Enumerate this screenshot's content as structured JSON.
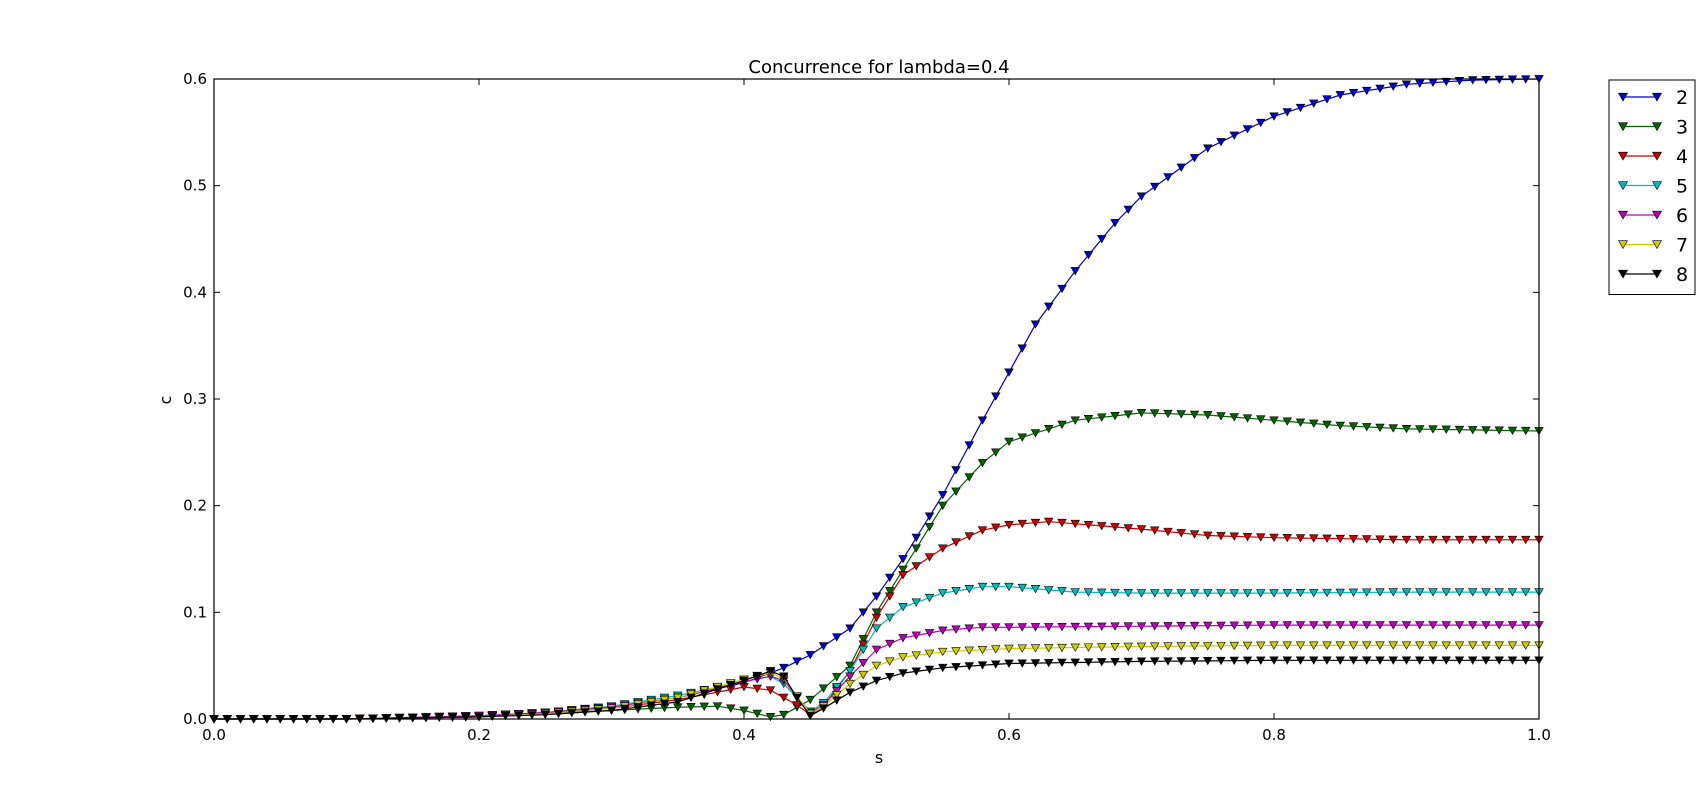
{
  "chart_data": {
    "type": "line",
    "title": "Concurrence for lambda=0.4",
    "xlabel": "s",
    "ylabel": "c",
    "xlim": [
      0.0,
      1.0
    ],
    "ylim": [
      0.0,
      0.6
    ],
    "xticks": [
      "0.0",
      "0.2",
      "0.4",
      "0.6",
      "0.8",
      "1.0"
    ],
    "yticks": [
      "0.0",
      "0.1",
      "0.2",
      "0.3",
      "0.4",
      "0.5",
      "0.6"
    ],
    "grid": false,
    "legend_position": "outside-top-right",
    "marker": "triangle-down",
    "series": [
      {
        "name": "2",
        "color": "#0000cc",
        "points": [
          [
            0.0,
            0.0
          ],
          [
            0.1,
            0.0
          ],
          [
            0.2,
            0.002
          ],
          [
            0.25,
            0.006
          ],
          [
            0.3,
            0.011
          ],
          [
            0.35,
            0.02
          ],
          [
            0.4,
            0.034
          ],
          [
            0.43,
            0.048
          ],
          [
            0.45,
            0.06
          ],
          [
            0.48,
            0.085
          ],
          [
            0.5,
            0.115
          ],
          [
            0.52,
            0.15
          ],
          [
            0.55,
            0.21
          ],
          [
            0.58,
            0.28
          ],
          [
            0.6,
            0.325
          ],
          [
            0.62,
            0.37
          ],
          [
            0.65,
            0.42
          ],
          [
            0.68,
            0.465
          ],
          [
            0.7,
            0.49
          ],
          [
            0.75,
            0.535
          ],
          [
            0.8,
            0.565
          ],
          [
            0.85,
            0.585
          ],
          [
            0.9,
            0.595
          ],
          [
            0.95,
            0.599
          ],
          [
            1.0,
            0.6
          ]
        ]
      },
      {
        "name": "3",
        "color": "#006600",
        "points": [
          [
            0.0,
            0.0
          ],
          [
            0.1,
            0.0
          ],
          [
            0.2,
            0.002
          ],
          [
            0.25,
            0.005
          ],
          [
            0.3,
            0.008
          ],
          [
            0.35,
            0.011
          ],
          [
            0.38,
            0.012
          ],
          [
            0.4,
            0.008
          ],
          [
            0.42,
            0.002
          ],
          [
            0.43,
            0.004
          ],
          [
            0.45,
            0.018
          ],
          [
            0.48,
            0.05
          ],
          [
            0.5,
            0.1
          ],
          [
            0.52,
            0.14
          ],
          [
            0.55,
            0.2
          ],
          [
            0.58,
            0.24
          ],
          [
            0.6,
            0.26
          ],
          [
            0.65,
            0.28
          ],
          [
            0.7,
            0.287
          ],
          [
            0.75,
            0.285
          ],
          [
            0.8,
            0.28
          ],
          [
            0.85,
            0.275
          ],
          [
            0.9,
            0.272
          ],
          [
            1.0,
            0.27
          ]
        ]
      },
      {
        "name": "4",
        "color": "#cc0000",
        "points": [
          [
            0.0,
            0.0
          ],
          [
            0.1,
            0.0
          ],
          [
            0.2,
            0.003
          ],
          [
            0.25,
            0.006
          ],
          [
            0.3,
            0.01
          ],
          [
            0.35,
            0.018
          ],
          [
            0.4,
            0.03
          ],
          [
            0.42,
            0.027
          ],
          [
            0.44,
            0.013
          ],
          [
            0.45,
            0.004
          ],
          [
            0.46,
            0.012
          ],
          [
            0.48,
            0.045
          ],
          [
            0.5,
            0.095
          ],
          [
            0.52,
            0.135
          ],
          [
            0.55,
            0.16
          ],
          [
            0.58,
            0.177
          ],
          [
            0.6,
            0.182
          ],
          [
            0.63,
            0.185
          ],
          [
            0.65,
            0.183
          ],
          [
            0.7,
            0.178
          ],
          [
            0.75,
            0.172
          ],
          [
            0.8,
            0.17
          ],
          [
            0.9,
            0.168
          ],
          [
            1.0,
            0.168
          ]
        ]
      },
      {
        "name": "5",
        "color": "#00bbbb",
        "points": [
          [
            0.0,
            0.0
          ],
          [
            0.1,
            0.0
          ],
          [
            0.2,
            0.003
          ],
          [
            0.25,
            0.006
          ],
          [
            0.3,
            0.012
          ],
          [
            0.35,
            0.022
          ],
          [
            0.4,
            0.035
          ],
          [
            0.42,
            0.04
          ],
          [
            0.43,
            0.033
          ],
          [
            0.45,
            0.007
          ],
          [
            0.46,
            0.015
          ],
          [
            0.48,
            0.045
          ],
          [
            0.5,
            0.085
          ],
          [
            0.52,
            0.105
          ],
          [
            0.55,
            0.118
          ],
          [
            0.58,
            0.124
          ],
          [
            0.6,
            0.124
          ],
          [
            0.63,
            0.121
          ],
          [
            0.65,
            0.119
          ],
          [
            0.7,
            0.118
          ],
          [
            0.8,
            0.118
          ],
          [
            0.9,
            0.119
          ],
          [
            1.0,
            0.119
          ]
        ]
      },
      {
        "name": "6",
        "color": "#bb00bb",
        "points": [
          [
            0.0,
            0.0
          ],
          [
            0.1,
            0.0
          ],
          [
            0.2,
            0.003
          ],
          [
            0.25,
            0.006
          ],
          [
            0.3,
            0.011
          ],
          [
            0.35,
            0.02
          ],
          [
            0.4,
            0.035
          ],
          [
            0.42,
            0.04
          ],
          [
            0.43,
            0.036
          ],
          [
            0.45,
            0.006
          ],
          [
            0.46,
            0.013
          ],
          [
            0.48,
            0.04
          ],
          [
            0.5,
            0.065
          ],
          [
            0.52,
            0.076
          ],
          [
            0.55,
            0.083
          ],
          [
            0.58,
            0.086
          ],
          [
            0.6,
            0.086
          ],
          [
            0.7,
            0.087
          ],
          [
            0.8,
            0.088
          ],
          [
            0.9,
            0.088
          ],
          [
            1.0,
            0.088
          ]
        ]
      },
      {
        "name": "7",
        "color": "#cccc00",
        "points": [
          [
            0.0,
            0.0
          ],
          [
            0.1,
            0.0
          ],
          [
            0.2,
            0.002
          ],
          [
            0.25,
            0.005
          ],
          [
            0.3,
            0.01
          ],
          [
            0.35,
            0.02
          ],
          [
            0.4,
            0.037
          ],
          [
            0.42,
            0.043
          ],
          [
            0.43,
            0.038
          ],
          [
            0.45,
            0.005
          ],
          [
            0.46,
            0.012
          ],
          [
            0.48,
            0.033
          ],
          [
            0.5,
            0.05
          ],
          [
            0.52,
            0.058
          ],
          [
            0.55,
            0.063
          ],
          [
            0.6,
            0.066
          ],
          [
            0.7,
            0.068
          ],
          [
            0.8,
            0.069
          ],
          [
            0.9,
            0.069
          ],
          [
            1.0,
            0.069
          ]
        ]
      },
      {
        "name": "8",
        "color": "#000000",
        "points": [
          [
            0.0,
            0.0
          ],
          [
            0.1,
            0.0
          ],
          [
            0.2,
            0.002
          ],
          [
            0.25,
            0.004
          ],
          [
            0.3,
            0.008
          ],
          [
            0.35,
            0.016
          ],
          [
            0.4,
            0.036
          ],
          [
            0.42,
            0.045
          ],
          [
            0.43,
            0.04
          ],
          [
            0.44,
            0.02
          ],
          [
            0.45,
            0.003
          ],
          [
            0.46,
            0.01
          ],
          [
            0.48,
            0.025
          ],
          [
            0.5,
            0.036
          ],
          [
            0.52,
            0.043
          ],
          [
            0.55,
            0.048
          ],
          [
            0.6,
            0.052
          ],
          [
            0.7,
            0.054
          ],
          [
            0.8,
            0.055
          ],
          [
            0.9,
            0.055
          ],
          [
            1.0,
            0.055
          ]
        ]
      }
    ]
  }
}
